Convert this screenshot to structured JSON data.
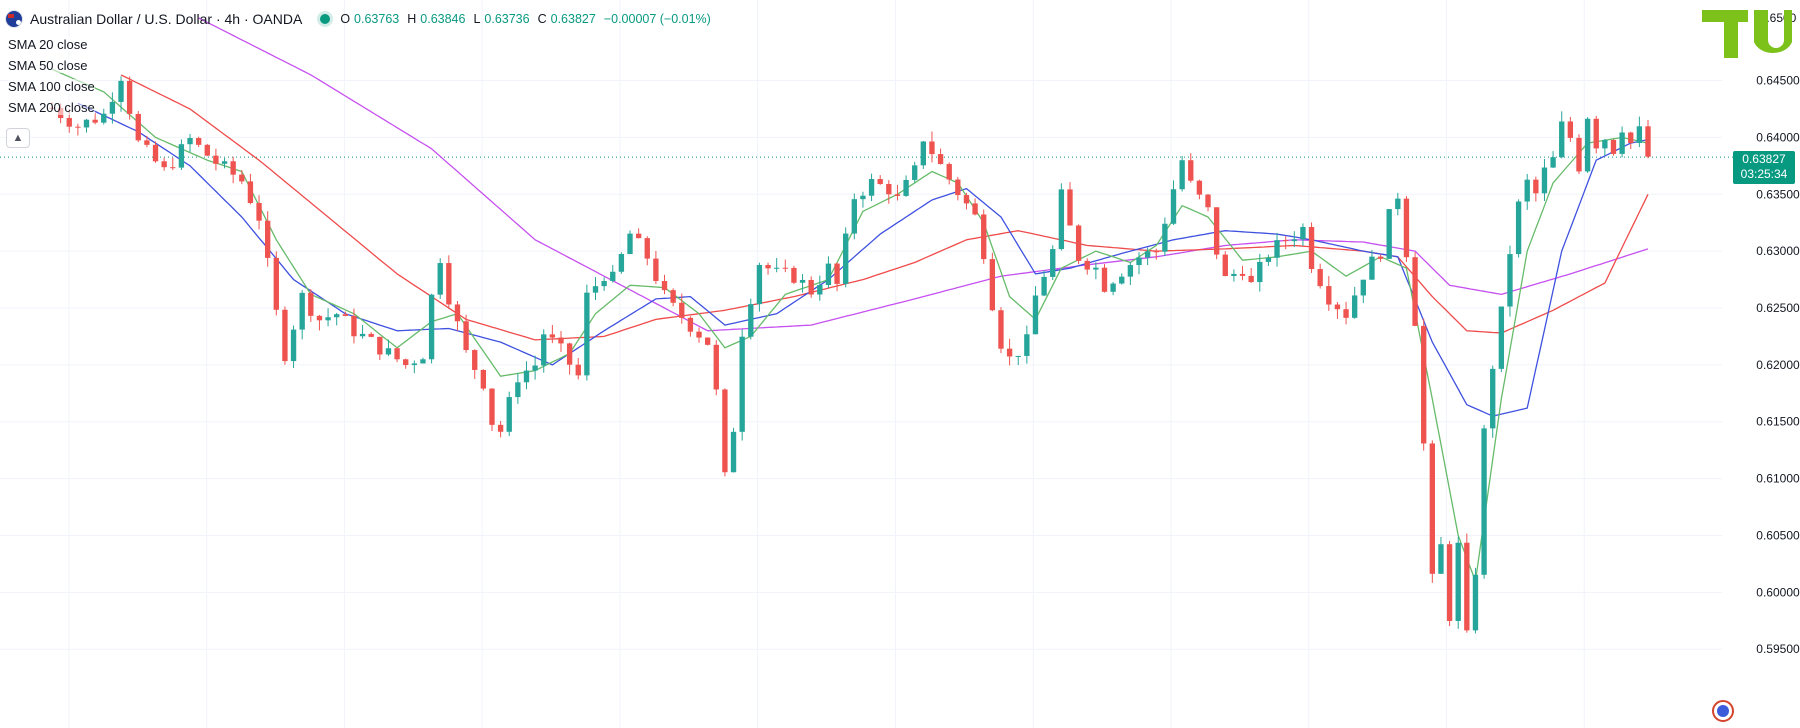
{
  "header": {
    "title": "Australian Dollar / U.S. Dollar · 4h · OANDA",
    "ohlc": {
      "o_label": "O",
      "o": "0.63763",
      "h_label": "H",
      "h": "0.63846",
      "l_label": "L",
      "l": "0.63736",
      "c_label": "C",
      "c": "0.63827",
      "change": "−0.00007 (−0.01%)"
    }
  },
  "indicators": [
    "SMA 20 close",
    "SMA 50 close",
    "SMA 100 close",
    "SMA 200 close"
  ],
  "price_badge": {
    "price": "0.63827",
    "timer": "03:25:34"
  },
  "logo": {
    "text": "TU"
  },
  "colors": {
    "up": "#26a69a",
    "down": "#ef5350",
    "sma20": "#66bb6a",
    "sma50": "#3f51e0",
    "sma100": "#ef4b4b",
    "sma200": "#c650f0",
    "last_price": "#089981",
    "grid": "#f0f3fa",
    "logo": "#7cc21a"
  },
  "chart_data": {
    "type": "candlestick",
    "symbol": "AUDUSD",
    "timeframe": "4h",
    "ylim": [
      0.5915,
      0.6505
    ],
    "y_ticks": [
      "0.64500",
      "0.64000",
      "0.63500",
      "0.63000",
      "0.62500",
      "0.62000",
      "0.61500",
      "0.61000",
      "0.60500",
      "0.60000",
      "0.59500"
    ],
    "top_tick_partial": "0.6500",
    "last_price": 0.63827,
    "close_path": [
      [
        0,
        0.6426
      ],
      [
        3,
        0.641
      ],
      [
        6,
        0.642
      ],
      [
        8,
        0.6455
      ],
      [
        10,
        0.6395
      ],
      [
        13,
        0.637
      ],
      [
        16,
        0.6398
      ],
      [
        19,
        0.6378
      ],
      [
        22,
        0.6362
      ],
      [
        24,
        0.633
      ],
      [
        26,
        0.6245
      ],
      [
        27,
        0.621
      ],
      [
        29,
        0.626
      ],
      [
        31,
        0.624
      ],
      [
        33,
        0.6245
      ],
      [
        35,
        0.623
      ],
      [
        38,
        0.6215
      ],
      [
        41,
        0.62
      ],
      [
        43,
        0.621
      ],
      [
        44,
        0.626
      ],
      [
        45,
        0.6295
      ],
      [
        46,
        0.626
      ],
      [
        48,
        0.621
      ],
      [
        50,
        0.6185
      ],
      [
        51,
        0.615
      ],
      [
        52,
        0.6142
      ],
      [
        54,
        0.619
      ],
      [
        56,
        0.62
      ],
      [
        57,
        0.6228
      ],
      [
        59,
        0.6212
      ],
      [
        61,
        0.619
      ],
      [
        62,
        0.626
      ],
      [
        64,
        0.628
      ],
      [
        65,
        0.6275
      ],
      [
        67,
        0.6315
      ],
      [
        69,
        0.6295
      ],
      [
        71,
        0.626
      ],
      [
        72,
        0.625
      ],
      [
        74,
        0.6235
      ],
      [
        76,
        0.622
      ],
      [
        77,
        0.6175
      ],
      [
        78,
        0.61
      ],
      [
        79,
        0.6145
      ],
      [
        80,
        0.623
      ],
      [
        82,
        0.629
      ],
      [
        84,
        0.628
      ],
      [
        86,
        0.6278
      ],
      [
        88,
        0.6265
      ],
      [
        90,
        0.6285
      ],
      [
        91,
        0.627
      ],
      [
        93,
        0.6348
      ],
      [
        95,
        0.636
      ],
      [
        97,
        0.6355
      ],
      [
        98,
        0.6345
      ],
      [
        100,
        0.637
      ],
      [
        101,
        0.64
      ],
      [
        103,
        0.6375
      ],
      [
        105,
        0.6352
      ],
      [
        107,
        0.633
      ],
      [
        108,
        0.63
      ],
      [
        109,
        0.6255
      ],
      [
        110,
        0.622
      ],
      [
        111,
        0.6205
      ],
      [
        113,
        0.622
      ],
      [
        114,
        0.626
      ],
      [
        116,
        0.63
      ],
      [
        117,
        0.6348
      ],
      [
        118,
        0.632
      ],
      [
        119,
        0.6295
      ],
      [
        121,
        0.6285
      ],
      [
        122,
        0.627
      ],
      [
        124,
        0.6283
      ],
      [
        126,
        0.6295
      ],
      [
        128,
        0.63
      ],
      [
        130,
        0.6355
      ],
      [
        131,
        0.638
      ],
      [
        132,
        0.6358
      ],
      [
        134,
        0.6335
      ],
      [
        135,
        0.63
      ],
      [
        136,
        0.6275
      ],
      [
        138,
        0.6285
      ],
      [
        139,
        0.627
      ],
      [
        141,
        0.6298
      ],
      [
        143,
        0.631
      ],
      [
        145,
        0.632
      ],
      [
        146,
        0.629
      ],
      [
        148,
        0.626
      ],
      [
        150,
        0.6245
      ],
      [
        152,
        0.628
      ],
      [
        154,
        0.63
      ],
      [
        155,
        0.633
      ],
      [
        156,
        0.635
      ],
      [
        157,
        0.63
      ],
      [
        158,
        0.624
      ],
      [
        159,
        0.613
      ],
      [
        160,
        0.601
      ],
      [
        161,
        0.604
      ],
      [
        162,
        0.598
      ],
      [
        163,
        0.604
      ],
      [
        164,
        0.596
      ],
      [
        165,
        0.602
      ],
      [
        166,
        0.614
      ],
      [
        167,
        0.62
      ],
      [
        168,
        0.6245
      ],
      [
        169,
        0.63
      ],
      [
        170,
        0.634
      ],
      [
        171,
        0.636
      ],
      [
        172,
        0.635
      ],
      [
        173,
        0.637
      ],
      [
        174,
        0.638
      ],
      [
        175,
        0.641
      ],
      [
        176,
        0.64
      ],
      [
        177,
        0.6375
      ],
      [
        178,
        0.642
      ],
      [
        179,
        0.6395
      ],
      [
        180,
        0.64
      ],
      [
        181,
        0.639
      ],
      [
        182,
        0.641
      ],
      [
        183,
        0.6395
      ],
      [
        184,
        0.6405
      ],
      [
        185,
        0.6383
      ]
    ],
    "sma20_path": [
      [
        0,
        0.646
      ],
      [
        6,
        0.644
      ],
      [
        12,
        0.64
      ],
      [
        18,
        0.638
      ],
      [
        22,
        0.637
      ],
      [
        26,
        0.631
      ],
      [
        30,
        0.6262
      ],
      [
        35,
        0.6245
      ],
      [
        40,
        0.6215
      ],
      [
        44,
        0.6238
      ],
      [
        47,
        0.6245
      ],
      [
        52,
        0.619
      ],
      [
        56,
        0.6195
      ],
      [
        60,
        0.621
      ],
      [
        63,
        0.6245
      ],
      [
        67,
        0.627
      ],
      [
        71,
        0.6268
      ],
      [
        75,
        0.6245
      ],
      [
        78,
        0.6215
      ],
      [
        81,
        0.6225
      ],
      [
        85,
        0.6262
      ],
      [
        90,
        0.6275
      ],
      [
        94,
        0.6335
      ],
      [
        98,
        0.635
      ],
      [
        102,
        0.637
      ],
      [
        105,
        0.636
      ],
      [
        108,
        0.6325
      ],
      [
        111,
        0.626
      ],
      [
        114,
        0.624
      ],
      [
        117,
        0.6285
      ],
      [
        121,
        0.63
      ],
      [
        125,
        0.629
      ],
      [
        128,
        0.6305
      ],
      [
        131,
        0.634
      ],
      [
        134,
        0.633
      ],
      [
        138,
        0.6292
      ],
      [
        142,
        0.6295
      ],
      [
        146,
        0.63
      ],
      [
        150,
        0.6278
      ],
      [
        154,
        0.6295
      ],
      [
        157,
        0.6285
      ],
      [
        160,
        0.617
      ],
      [
        163,
        0.605
      ],
      [
        165,
        0.601
      ],
      [
        168,
        0.617
      ],
      [
        171,
        0.63
      ],
      [
        174,
        0.636
      ],
      [
        178,
        0.6395
      ],
      [
        182,
        0.64
      ],
      [
        185,
        0.6395
      ]
    ],
    "sma50_path": [
      [
        3,
        0.643
      ],
      [
        10,
        0.6405
      ],
      [
        16,
        0.6375
      ],
      [
        22,
        0.633
      ],
      [
        28,
        0.6275
      ],
      [
        34,
        0.6245
      ],
      [
        40,
        0.623
      ],
      [
        46,
        0.6232
      ],
      [
        52,
        0.622
      ],
      [
        58,
        0.62
      ],
      [
        64,
        0.623
      ],
      [
        70,
        0.6258
      ],
      [
        74,
        0.626
      ],
      [
        78,
        0.6235
      ],
      [
        84,
        0.6245
      ],
      [
        90,
        0.6275
      ],
      [
        96,
        0.6315
      ],
      [
        102,
        0.6345
      ],
      [
        106,
        0.6355
      ],
      [
        110,
        0.633
      ],
      [
        114,
        0.628
      ],
      [
        118,
        0.6285
      ],
      [
        124,
        0.6298
      ],
      [
        130,
        0.631
      ],
      [
        136,
        0.6318
      ],
      [
        142,
        0.6315
      ],
      [
        146,
        0.631
      ],
      [
        152,
        0.63
      ],
      [
        156,
        0.6295
      ],
      [
        160,
        0.622
      ],
      [
        164,
        0.6165
      ],
      [
        167,
        0.6155
      ],
      [
        171,
        0.6162
      ],
      [
        175,
        0.63
      ],
      [
        179,
        0.638
      ],
      [
        183,
        0.6395
      ],
      [
        185,
        0.6398
      ]
    ],
    "sma100_path": [
      [
        8,
        0.6455
      ],
      [
        16,
        0.6425
      ],
      [
        24,
        0.638
      ],
      [
        32,
        0.633
      ],
      [
        40,
        0.628
      ],
      [
        48,
        0.624
      ],
      [
        56,
        0.6222
      ],
      [
        64,
        0.6225
      ],
      [
        70,
        0.624
      ],
      [
        78,
        0.6248
      ],
      [
        86,
        0.626
      ],
      [
        94,
        0.6275
      ],
      [
        100,
        0.629
      ],
      [
        106,
        0.631
      ],
      [
        112,
        0.6318
      ],
      [
        120,
        0.6305
      ],
      [
        128,
        0.63
      ],
      [
        136,
        0.6302
      ],
      [
        144,
        0.6305
      ],
      [
        152,
        0.63
      ],
      [
        156,
        0.6295
      ],
      [
        160,
        0.626
      ],
      [
        164,
        0.623
      ],
      [
        168,
        0.6228
      ],
      [
        174,
        0.6248
      ],
      [
        180,
        0.6272
      ],
      [
        185,
        0.635
      ]
    ],
    "sma200_path": [
      [
        17,
        0.6505
      ],
      [
        30,
        0.6455
      ],
      [
        44,
        0.639
      ],
      [
        56,
        0.631
      ],
      [
        66,
        0.627
      ],
      [
        76,
        0.623
      ],
      [
        88,
        0.6235
      ],
      [
        100,
        0.6258
      ],
      [
        110,
        0.6278
      ],
      [
        120,
        0.6288
      ],
      [
        128,
        0.6295
      ],
      [
        136,
        0.6305
      ],
      [
        144,
        0.631
      ],
      [
        152,
        0.6308
      ],
      [
        158,
        0.63
      ],
      [
        162,
        0.627
      ],
      [
        168,
        0.6262
      ],
      [
        176,
        0.628
      ],
      [
        185,
        0.6302
      ]
    ]
  }
}
